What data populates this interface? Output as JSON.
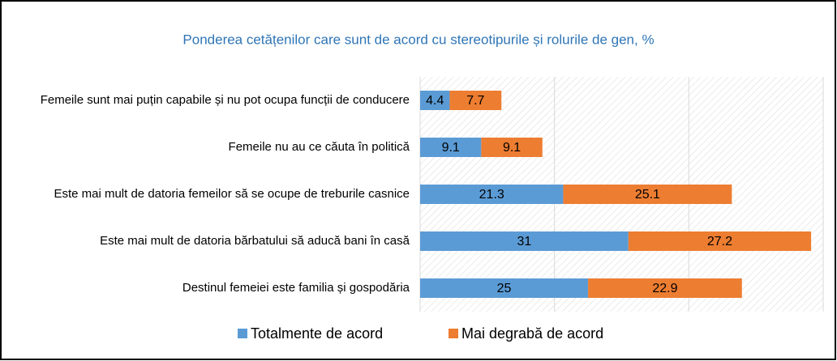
{
  "chart_data": {
    "type": "stacked_bar_horizontal",
    "title": "Ponderea cetățenilor care sunt de acord cu stereotipurile și rolurile de gen, %",
    "categories": [
      "Femeile sunt mai puțin capabile și nu pot ocupa funcții de conducere",
      "Femeile nu au ce căuta în politică",
      "Este mai mult de datoria femeilor să se ocupe de treburile casnice",
      "Este mai mult de datoria bărbatului să aducă bani în casă",
      "Destinul femeiei este familia și gospodăria"
    ],
    "series": [
      {
        "name": "Totalmente de acord",
        "color": "#5b9bd5",
        "values": [
          4.4,
          9.1,
          21.3,
          31,
          25
        ]
      },
      {
        "name": "Mai degrabă de acord",
        "color": "#ed7d31",
        "values": [
          7.7,
          9.1,
          25.1,
          27.2,
          22.9
        ]
      }
    ],
    "xlim": [
      0,
      60
    ],
    "xticks": [
      0,
      20,
      40,
      60
    ],
    "grid": true,
    "legend": "bottom"
  }
}
